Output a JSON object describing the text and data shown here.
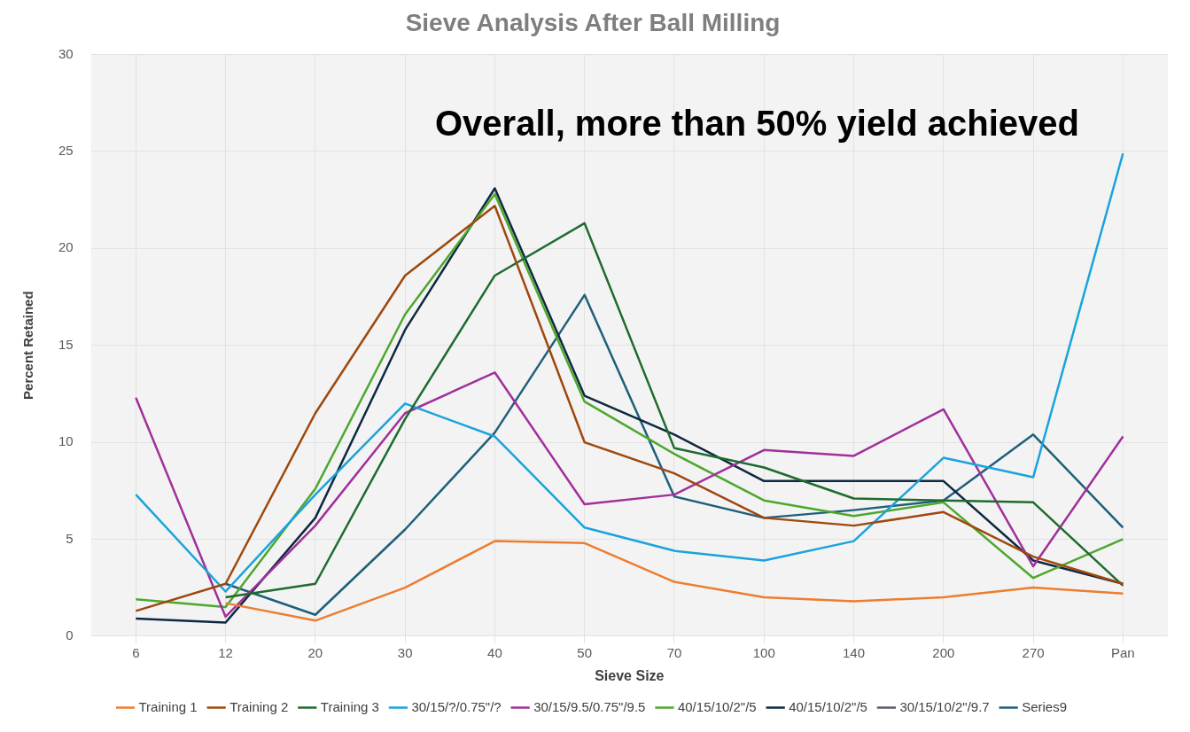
{
  "chart_data": {
    "type": "line",
    "title": "Sieve Analysis After Ball Milling",
    "xlabel": "Sieve Size",
    "ylabel": "Percent Retained",
    "categories": [
      "6",
      "12",
      "20",
      "30",
      "40",
      "50",
      "70",
      "100",
      "140",
      "200",
      "270",
      "Pan"
    ],
    "ylim": [
      0,
      30
    ],
    "yticks": [
      0,
      5,
      10,
      15,
      20,
      25,
      30
    ],
    "grid": true,
    "legend": "bottom",
    "marker": "none",
    "line_style": "solid",
    "annotations": [
      "Overall, more than 50% yield achieved"
    ],
    "series": [
      {
        "name": "Training 1",
        "color": "#ed7d31",
        "values": [
          null,
          1.7,
          0.8,
          2.5,
          4.9,
          4.8,
          2.8,
          2.0,
          1.8,
          2.0,
          2.5,
          2.2
        ]
      },
      {
        "name": "Training 2",
        "color": "#9e480e",
        "values": [
          1.3,
          2.7,
          11.5,
          18.6,
          22.2,
          10.0,
          8.4,
          6.1,
          5.7,
          6.4,
          4.1,
          2.7
        ]
      },
      {
        "name": "Training 3",
        "color": "#1e6b2e",
        "values": [
          null,
          2.0,
          2.7,
          11.2,
          18.6,
          21.3,
          9.7,
          8.7,
          7.1,
          7.0,
          6.9,
          2.6
        ]
      },
      {
        "name": "30/15/?/0.75\"/?",
        "color": "#1aa3dc",
        "values": [
          7.3,
          2.3,
          7.3,
          12.0,
          10.3,
          5.6,
          4.4,
          3.9,
          4.9,
          9.2,
          8.2,
          24.9
        ]
      },
      {
        "name": "30/15/9.5/0.75\"/9.5",
        "color": "#a0309a",
        "values": [
          12.3,
          1.0,
          5.7,
          11.5,
          13.6,
          6.8,
          7.3,
          9.6,
          9.3,
          11.7,
          3.6,
          10.3
        ]
      },
      {
        "name": "40/15/10/2\"/5",
        "color": "#4ea72e",
        "values": [
          1.9,
          1.5,
          7.6,
          16.6,
          22.8,
          12.1,
          9.4,
          7.0,
          6.2,
          6.9,
          3.0,
          5.0
        ]
      },
      {
        "name": "40/15/10/2\"/5",
        "color": "#0e2841",
        "values": [
          0.9,
          0.7,
          6.1,
          15.8,
          23.1,
          12.4,
          10.4,
          8.0,
          8.0,
          8.0,
          3.9,
          2.7
        ]
      },
      {
        "name": "30/15/10/2\"/9.7",
        "color": "#5a5a6e",
        "values": [
          null,
          null,
          null,
          null,
          null,
          null,
          null,
          null,
          null,
          null,
          null,
          null
        ]
      },
      {
        "name": "Series9",
        "color": "#1f5f7a",
        "values": [
          null,
          2.7,
          1.1,
          5.5,
          10.5,
          17.6,
          7.2,
          6.1,
          6.5,
          7.0,
          10.4,
          5.6
        ]
      }
    ]
  }
}
